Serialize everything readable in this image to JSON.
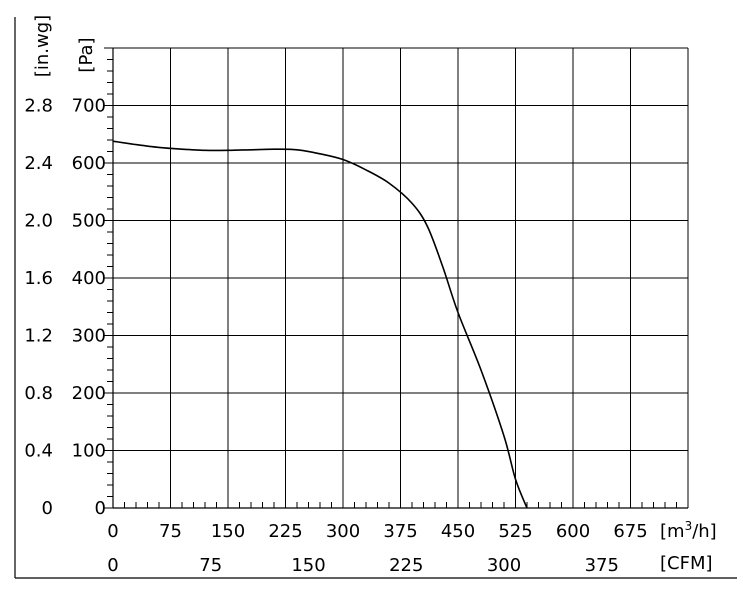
{
  "chart_data": {
    "type": "line",
    "title": "",
    "x_primary": {
      "label": "[m³/h]",
      "label_base": "[m",
      "label_sup": "3",
      "label_tail": "/h]",
      "range": [
        0,
        750
      ],
      "ticks": [
        "0",
        "75",
        "150",
        "225",
        "300",
        "375",
        "450",
        "525",
        "600",
        "675"
      ]
    },
    "x_secondary": {
      "label": "[CFM]",
      "ticks": [
        "0",
        "75",
        "150",
        "225",
        "300",
        "375"
      ],
      "tick_positions_m3h": [
        0,
        127.5,
        255,
        382.5,
        510,
        637.5
      ]
    },
    "y_primary": {
      "label": "[Pa]",
      "range": [
        0,
        800
      ],
      "ticks": [
        "0",
        "100",
        "200",
        "300",
        "400",
        "500",
        "600",
        "700"
      ]
    },
    "y_secondary": {
      "label": "[in.wg]",
      "ticks": [
        "0",
        "0.4",
        "0.8",
        "1.2",
        "1.6",
        "2.0",
        "2.4",
        "2.8"
      ],
      "tick_positions_pa": [
        0,
        100,
        200,
        300,
        400,
        500,
        600,
        700
      ]
    },
    "grid": true,
    "series": [
      {
        "x": [
          0,
          30,
          60,
          90,
          120,
          150,
          180,
          210,
          240,
          270,
          300,
          330,
          360,
          390,
          410,
          430,
          450,
          480,
          510,
          525,
          540
        ],
        "y": [
          638,
          632,
          627,
          624,
          622,
          622,
          623,
          624,
          623,
          616,
          606,
          588,
          565,
          530,
          490,
          420,
          340,
          240,
          125,
          50,
          0
        ]
      }
    ]
  }
}
